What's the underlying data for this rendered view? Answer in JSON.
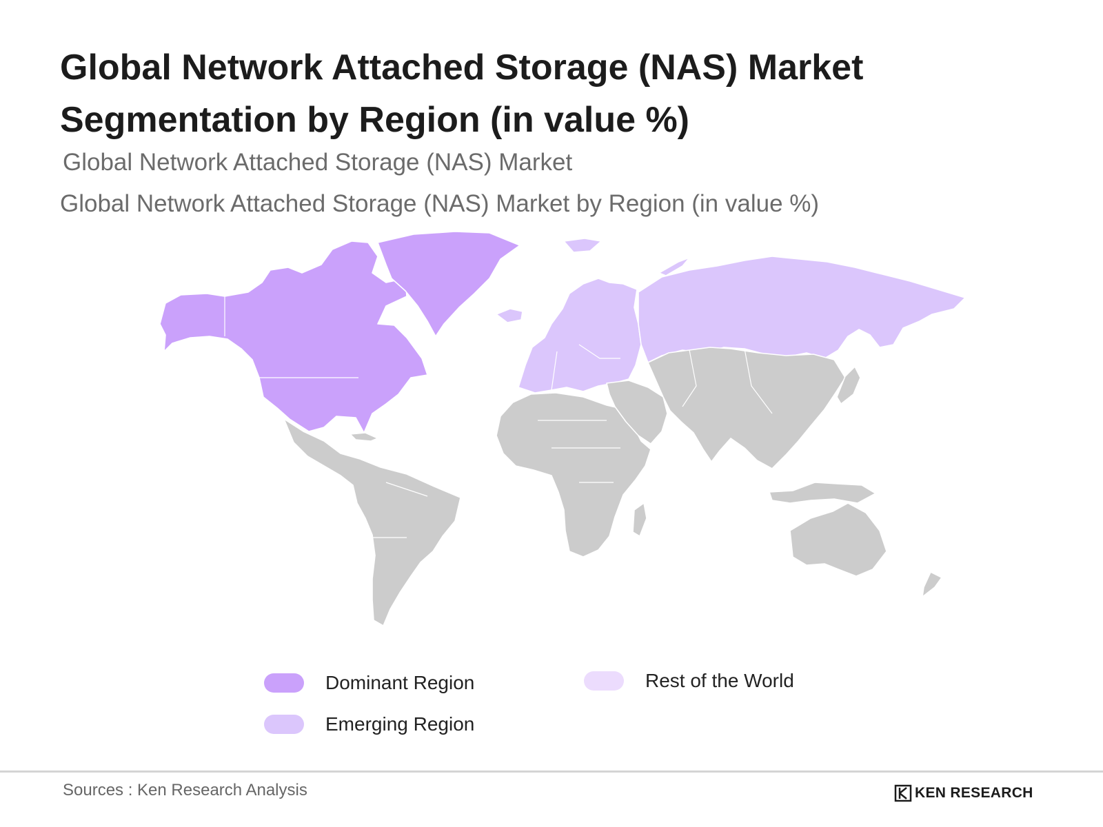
{
  "header": {
    "title_line1": "Global Network Attached Storage (NAS) Market",
    "title_line2": "Segmentation by Region (in value %)",
    "subtitle1": "Global Network Attached Storage (NAS) Market",
    "subtitle2": "Global Network Attached Storage (NAS) Market  by Region (in value %)"
  },
  "legend": {
    "dominant": {
      "label": "Dominant Region",
      "color": "#caa1fb"
    },
    "emerging": {
      "label": "Emerging Region",
      "color": "#dbc6fc"
    },
    "rest": {
      "label": "Rest of the World",
      "color": "#ecdcfd"
    }
  },
  "map_colors": {
    "dominant": "#caa1fb",
    "emerging": "#dbc6fc",
    "other": "#cccccc",
    "border": "#ffffff"
  },
  "regions": {
    "dominant": [
      "North America",
      "Greenland"
    ],
    "emerging": [
      "Europe",
      "Russia"
    ],
    "other": [
      "Latin America",
      "Africa",
      "Middle East",
      "Asia",
      "Oceania"
    ]
  },
  "footer": {
    "source": "Sources : Ken Research Analysis",
    "brand": "KEN RESEARCH",
    "brand_icon": "ken-research-logo"
  }
}
